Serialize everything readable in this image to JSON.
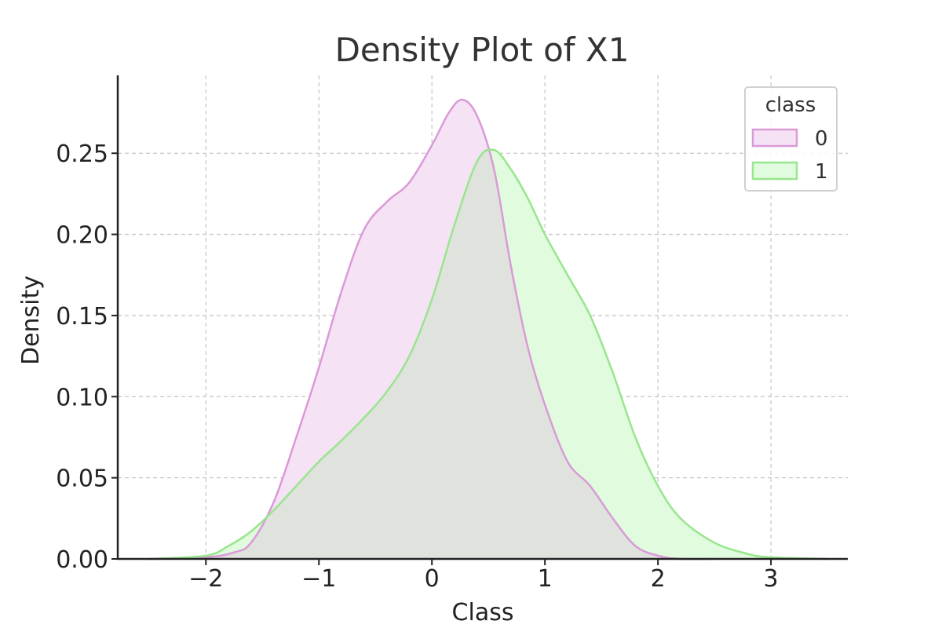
{
  "chart_data": {
    "type": "area",
    "title": "Density Plot of X1",
    "xlabel": "Class",
    "ylabel": "Density",
    "xlim": [
      -2.78,
      3.68
    ],
    "ylim": [
      0,
      0.298
    ],
    "xticks": [
      -2,
      -1,
      0,
      1,
      2,
      3
    ],
    "yticks": [
      0.0,
      0.05,
      0.1,
      0.15,
      0.2,
      0.25
    ],
    "grid": true,
    "legend": {
      "title": "class",
      "position": "top-right"
    },
    "series": [
      {
        "name": "0",
        "color": "#da9ad8",
        "fill": "#f5e2f5",
        "x": [
          -2.5,
          -2.0,
          -1.75,
          -1.6,
          -1.4,
          -1.2,
          -1.0,
          -0.8,
          -0.6,
          -0.4,
          -0.2,
          0.0,
          0.15,
          0.27,
          0.4,
          0.55,
          0.7,
          0.85,
          1.0,
          1.2,
          1.4,
          1.6,
          1.8,
          2.0,
          2.2,
          2.5
        ],
        "y": [
          0.0,
          0.001,
          0.004,
          0.01,
          0.035,
          0.075,
          0.118,
          0.165,
          0.203,
          0.22,
          0.232,
          0.255,
          0.275,
          0.283,
          0.273,
          0.24,
          0.18,
          0.13,
          0.095,
          0.06,
          0.045,
          0.025,
          0.008,
          0.002,
          0.0,
          0.0
        ]
      },
      {
        "name": "1",
        "color": "#98e68d",
        "fill": "#e0fbdd",
        "x": [
          -2.5,
          -2.0,
          -1.8,
          -1.6,
          -1.4,
          -1.2,
          -1.0,
          -0.8,
          -0.6,
          -0.4,
          -0.2,
          0.0,
          0.2,
          0.4,
          0.55,
          0.7,
          0.85,
          1.0,
          1.2,
          1.4,
          1.6,
          1.8,
          2.0,
          2.2,
          2.5,
          2.8,
          3.0,
          3.5
        ],
        "y": [
          0.0,
          0.002,
          0.008,
          0.017,
          0.03,
          0.045,
          0.06,
          0.073,
          0.087,
          0.103,
          0.125,
          0.16,
          0.206,
          0.245,
          0.252,
          0.24,
          0.222,
          0.2,
          0.175,
          0.15,
          0.115,
          0.075,
          0.045,
          0.025,
          0.01,
          0.003,
          0.001,
          0.0
        ]
      }
    ],
    "overlap_fill": "#e0e2de"
  }
}
